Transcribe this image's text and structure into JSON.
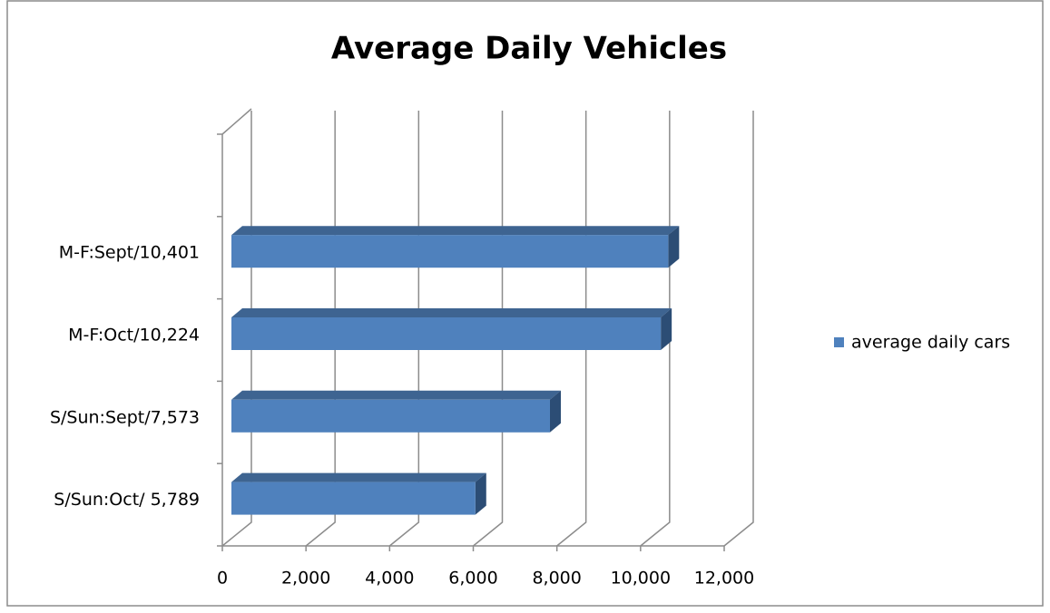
{
  "chart_data": {
    "type": "bar",
    "orientation": "horizontal",
    "title": "Average Daily Vehicles",
    "categories": [
      null,
      "M-F:Sept/10,401",
      "M-F:Oct/10,224",
      "S/Sun:Sept/7,573",
      "S/Sun:Oct/ 5,789"
    ],
    "series": [
      {
        "name": "average daily cars",
        "color": "#4f81bd",
        "values": [
          null,
          10401,
          10224,
          7573,
          5789
        ]
      }
    ],
    "xlim": [
      0,
      12000
    ],
    "xticks": [
      0,
      {
        "value": 2000,
        "label": "2,000"
      },
      {
        "value": 4000,
        "label": "4,000"
      },
      {
        "value": 6000,
        "label": "6,000"
      },
      {
        "value": 8000,
        "label": "8,000"
      },
      {
        "value": 10000,
        "label": "10,000"
      },
      {
        "value": 12000,
        "label": "12,000"
      }
    ],
    "grid": true,
    "legend": "right"
  }
}
